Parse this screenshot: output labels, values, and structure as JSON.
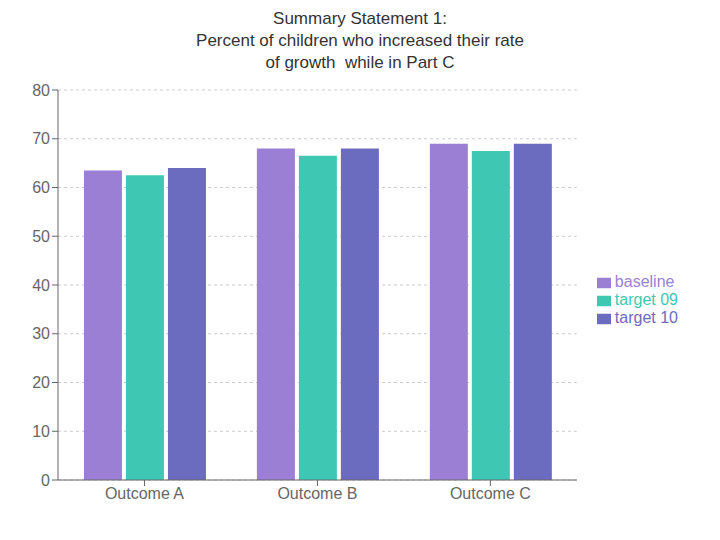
{
  "chart_data": {
    "type": "bar",
    "title": "Summary Statement 1:\nPercent of children who increased their rate\nof growth  while in Part C",
    "categories": [
      "Outcome A",
      "Outcome B",
      "Outcome C"
    ],
    "series": [
      {
        "name": "baseline",
        "color": "#9b7fd4",
        "values": [
          63.5,
          68.0,
          69.0
        ]
      },
      {
        "name": "target 09",
        "color": "#3ec8b4",
        "values": [
          62.5,
          66.5,
          67.5
        ]
      },
      {
        "name": "target 10",
        "color": "#6b6bbf",
        "values": [
          64.0,
          68.0,
          69.0
        ]
      }
    ],
    "ylim": [
      0,
      80
    ],
    "yticks": [
      0,
      10,
      20,
      30,
      40,
      50,
      60,
      70,
      80
    ],
    "grid": true,
    "legend": "right"
  }
}
